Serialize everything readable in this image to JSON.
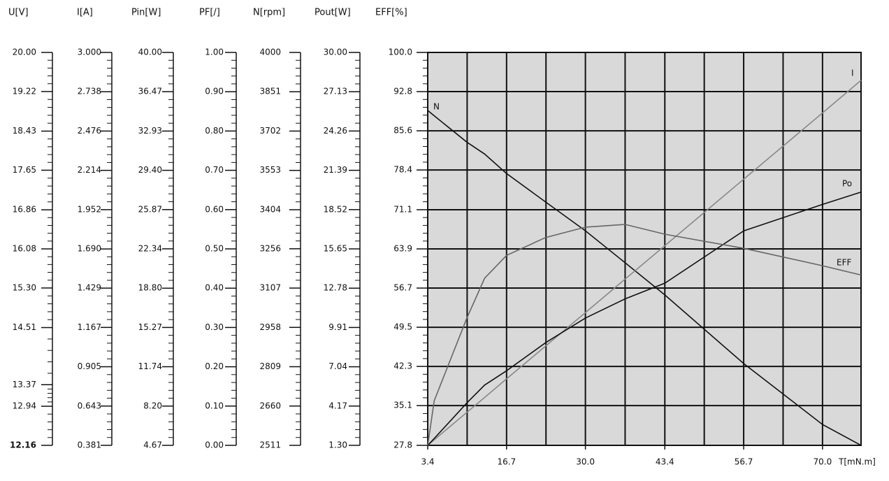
{
  "chart_data": {
    "type": "line",
    "scales": [
      {
        "label": "U[V]",
        "lim": [
          12.16,
          20.0
        ],
        "ticks": [
          12.16,
          12.94,
          13.37,
          14.51,
          {
            "value": 15.3,
            "label": "15.30"
          },
          16.08,
          16.86,
          17.65,
          18.43,
          19.22,
          {
            "value": 20.0,
            "label": "20.00"
          }
        ]
      },
      {
        "label": "I[A]",
        "lim": [
          0.381,
          3.0
        ],
        "ticks": [
          0.381,
          0.643,
          0.905,
          1.167,
          1.429,
          {
            "value": 1.69,
            "label": "1.690"
          },
          1.952,
          2.214,
          2.476,
          2.738,
          {
            "value": 3.0,
            "label": "3.000"
          }
        ]
      },
      {
        "label": "Pin[W]",
        "lim": [
          4.67,
          40.0
        ],
        "ticks": [
          4.67,
          {
            "value": 8.2,
            "label": "8.20"
          },
          11.74,
          15.27,
          {
            "value": 18.8,
            "label": "18.80"
          },
          22.34,
          25.87,
          {
            "value": 29.4,
            "label": "29.40"
          },
          32.93,
          36.47,
          {
            "value": 40.0,
            "label": "40.00"
          }
        ]
      },
      {
        "label": "PF[/]",
        "lim": [
          0.0,
          1.0
        ],
        "ticks": [
          {
            "value": 0.0,
            "label": "0.00"
          },
          {
            "value": 0.1,
            "label": "0.10"
          },
          {
            "value": 0.2,
            "label": "0.20"
          },
          {
            "value": 0.3,
            "label": "0.30"
          },
          {
            "value": 0.4,
            "label": "0.40"
          },
          {
            "value": 0.5,
            "label": "0.50"
          },
          {
            "value": 0.6,
            "label": "0.60"
          },
          {
            "value": 0.7,
            "label": "0.70"
          },
          {
            "value": 0.8,
            "label": "0.80"
          },
          {
            "value": 0.9,
            "label": "0.90"
          },
          {
            "value": 1.0,
            "label": "1.00"
          }
        ]
      },
      {
        "label": "N[rpm]",
        "lim": [
          2511,
          4000
        ],
        "ticks": [
          2511,
          2660,
          2809,
          2958,
          3107,
          3256,
          3404,
          3553,
          3702,
          3851,
          4000
        ]
      },
      {
        "label": "Pout[W]",
        "lim": [
          1.3,
          30.0
        ],
        "ticks": [
          {
            "value": 1.3,
            "label": "1.30"
          },
          4.17,
          7.04,
          9.91,
          12.78,
          15.65,
          18.52,
          21.39,
          24.26,
          27.13,
          {
            "value": 30.0,
            "label": "30.00"
          }
        ]
      }
    ],
    "ylabel": "EFF[%]",
    "ylim": [
      27.8,
      100.0
    ],
    "yticks": [
      27.8,
      35.1,
      42.3,
      49.5,
      56.7,
      63.9,
      71.1,
      78.4,
      85.6,
      92.8,
      {
        "value": 100.0,
        "label": "100.0"
      }
    ],
    "xlabel": "T[mN.m]",
    "xlim": [
      3.4,
      76.5
    ],
    "xticks": [
      3.4,
      16.7,
      {
        "value": 30.0,
        "label": "30.0"
      },
      43.4,
      56.7,
      {
        "value": 70.0,
        "label": "70.0"
      }
    ],
    "grid": true,
    "x": [
      3.4,
      4.5,
      10.0,
      13.0,
      16.7,
      23.3,
      30.0,
      36.7,
      43.4,
      56.7,
      70.0,
      76.5
    ],
    "series": [
      {
        "name": "N",
        "axis": "N[rpm]",
        "color": "#111111",
        "values": [
          3780,
          3760,
          3660,
          3615,
          3541,
          3433,
          3324,
          3203,
          3081,
          2821,
          2590,
          2511
        ]
      },
      {
        "name": "I",
        "axis": "I[A]",
        "color": "#888888",
        "values": [
          0.381,
          0.418,
          0.601,
          0.7,
          0.824,
          1.043,
          1.266,
          1.489,
          1.712,
          2.155,
          2.597,
          2.814
        ]
      },
      {
        "name": "Po",
        "axis": "Pout[W]",
        "color": "#111111",
        "values": [
          1.3,
          1.8,
          4.4,
          5.7,
          6.75,
          8.8,
          10.6,
          12.0,
          13.15,
          16.97,
          18.9,
          19.8
        ]
      },
      {
        "name": "EFF",
        "color": "#666666",
        "values": [
          27.8,
          36.0,
          51.2,
          58.5,
          62.7,
          66.0,
          67.9,
          68.4,
          66.6,
          64.0,
          60.8,
          59.1
        ]
      }
    ]
  }
}
